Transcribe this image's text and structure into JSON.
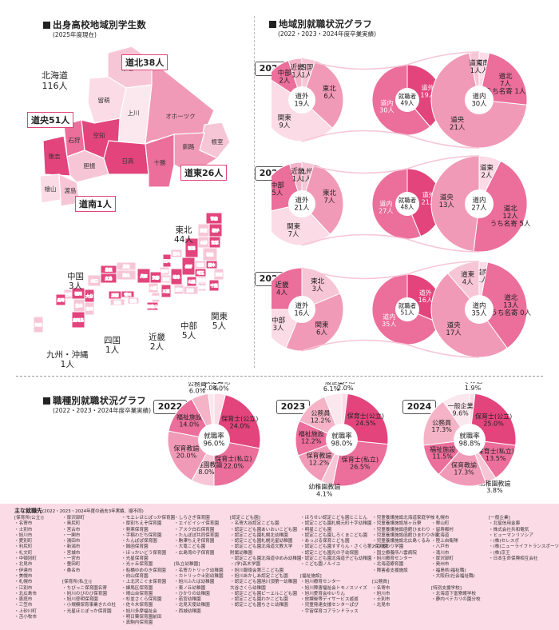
{
  "map_section": {
    "title": "出身高校地域別学生数",
    "subtitle": "(2025年度現在)",
    "hokkaido_subregions": [
      {
        "name": "道北",
        "count": "38人"
      },
      {
        "name": "道央",
        "count": "51人"
      },
      {
        "name": "道東",
        "count": "26人"
      },
      {
        "name": "道南",
        "count": "1人"
      }
    ],
    "hokkaido_label": "北海道",
    "hokkaido_total": "116人",
    "districts": [
      "宗谷",
      "留萌",
      "上川",
      "オホーツク",
      "根室",
      "石狩",
      "空知",
      "釧路",
      "後志",
      "胆振",
      "日高",
      "十勝",
      "檜山",
      "渡島"
    ],
    "prefectures": [
      "青森",
      "秋田",
      "岩手",
      "山形",
      "宮城",
      "福島",
      "新潟",
      "富山",
      "石川",
      "福井",
      "長野",
      "群馬",
      "栃木",
      "茨城",
      "埼玉",
      "東京",
      "千葉",
      "神奈川",
      "山梨",
      "静岡",
      "岐阜",
      "愛知",
      "三重",
      "滋賀",
      "京都",
      "大阪",
      "兵庫",
      "奈良",
      "和歌山",
      "鳥取",
      "島根",
      "岡山",
      "広島",
      "山口",
      "香川",
      "徳島",
      "愛媛",
      "高知",
      "福岡",
      "佐賀",
      "長崎",
      "熊本",
      "大分",
      "宮崎",
      "鹿児島",
      "沖縄"
    ],
    "regions": [
      {
        "name": "東北",
        "count": "44人"
      },
      {
        "name": "中国",
        "count": "3人"
      },
      {
        "name": "関東",
        "count": "5人"
      },
      {
        "name": "中部",
        "count": "5人"
      },
      {
        "name": "近畿",
        "count": "2人"
      },
      {
        "name": "四国",
        "count": "1人"
      },
      {
        "name": "九州・沖縄",
        "count": "1人"
      }
    ]
  },
  "region_section": {
    "title": "地域別就職状況グラフ",
    "subtitle": "(2022・2023・2024年度卒業実績)"
  },
  "job_section": {
    "title": "職種別就職状況グラフ",
    "subtitle": "(2022・2023・2024年度卒業実績)"
  },
  "chart_data": [
    {
      "type": "pie",
      "year": "2022",
      "title": "地域別就職状況 2022",
      "outer_left": {
        "slices": [
          {
            "label": "四国",
            "value": "1人"
          },
          {
            "label": "東北",
            "value": "6人"
          },
          {
            "label": "関東",
            "value": "9人"
          },
          {
            "label": "中部",
            "value": "2人"
          },
          {
            "label": "近畿",
            "value": "1人"
          }
        ],
        "center": {
          "label": "道外",
          "value": "19人"
        }
      },
      "middle": {
        "slices": [
          {
            "label": "道外",
            "value": "19人"
          },
          {
            "label": "道内",
            "value": "30人"
          }
        ],
        "center": {
          "label": "就職者",
          "value": "49人"
        }
      },
      "outer_right": {
        "slices": [
          {
            "label": "道南",
            "value": "1人"
          },
          {
            "label": "道北",
            "value": "7人",
            "note": "うち名寄",
            "note_value": "1人"
          },
          {
            "label": "道央",
            "value": "21人"
          },
          {
            "label": "道東",
            "value": "1人"
          }
        ],
        "center": {
          "label": "道内",
          "value": "30人"
        }
      }
    },
    {
      "type": "pie",
      "year": "2023",
      "title": "地域別就職状況 2023",
      "outer_left": {
        "slices": [
          {
            "label": "九州",
            "value": "1人"
          },
          {
            "label": "東北",
            "value": "7人"
          },
          {
            "label": "関東",
            "value": "7人"
          },
          {
            "label": "中部",
            "value": "5人"
          },
          {
            "label": "近畿",
            "value": "1人"
          }
        ],
        "center": {
          "label": "道外",
          "value": "21人"
        }
      },
      "middle": {
        "slices": [
          {
            "label": "道外",
            "value": "21人"
          },
          {
            "label": "道内",
            "value": "27人"
          }
        ],
        "center": {
          "label": "就職者",
          "value": "48人"
        }
      },
      "outer_right": {
        "slices": [
          {
            "label": "道東",
            "value": "2人"
          },
          {
            "label": "道北",
            "value": "12人",
            "note": "うち名寄",
            "note_value": "5人"
          },
          {
            "label": "道央",
            "value": "13人"
          }
        ],
        "center": {
          "label": "道内",
          "value": "27人"
        }
      }
    },
    {
      "type": "pie",
      "year": "2024",
      "title": "地域別就職状況 2024",
      "outer_left": {
        "slices": [
          {
            "label": "東北",
            "value": "3人"
          },
          {
            "label": "関東",
            "value": "6人"
          },
          {
            "label": "中部",
            "value": "3人"
          },
          {
            "label": "近畿",
            "value": "4人"
          }
        ],
        "center": {
          "label": "道外",
          "value": "16人"
        }
      },
      "middle": {
        "slices": [
          {
            "label": "道外",
            "value": "16人"
          },
          {
            "label": "道内",
            "value": "35人"
          }
        ],
        "center": {
          "label": "就職者",
          "value": "51人"
        }
      },
      "outer_right": {
        "slices": [
          {
            "label": "道南",
            "value": "1人"
          },
          {
            "label": "道北",
            "value": "13人",
            "note": "うち名寄",
            "note_value": "0人"
          },
          {
            "label": "道央",
            "value": "17人"
          },
          {
            "label": "道東",
            "value": "4人"
          }
        ],
        "center": {
          "label": "道内",
          "value": "35人"
        }
      }
    },
    {
      "type": "pie",
      "year": "2022",
      "title": "職種別就職状況 2022",
      "center": {
        "label": "就職率",
        "value": "96.0%"
      },
      "slices": [
        {
          "label": "その他",
          "value": 4.0
        },
        {
          "label": "保育士(公立)",
          "value": 24.0
        },
        {
          "label": "保育士(私立)",
          "value": 22.0
        },
        {
          "label": "幼稚園教諭",
          "value": 8.0
        },
        {
          "label": "保育教諭",
          "value": 20.0
        },
        {
          "label": "福祉施設",
          "value": 14.0
        },
        {
          "label": "公務員",
          "value": 6.0
        },
        {
          "label": "一般企業",
          "value": 2.0
        }
      ]
    },
    {
      "type": "pie",
      "year": "2023",
      "title": "職種別就職状況 2023",
      "center": {
        "label": "就職率",
        "value": "98.0%"
      },
      "slices": [
        {
          "label": "その他",
          "value": 2.0
        },
        {
          "label": "保育士(公立)",
          "value": 24.5
        },
        {
          "label": "保育士(私立)",
          "value": 26.5
        },
        {
          "label": "幼稚園教諭",
          "value": 4.1
        },
        {
          "label": "保育教諭",
          "value": 12.2
        },
        {
          "label": "福祉施設",
          "value": 12.2
        },
        {
          "label": "公務員",
          "value": 12.2
        },
        {
          "label": "一般企業",
          "value": 6.1
        }
      ]
    },
    {
      "type": "pie",
      "year": "2024",
      "title": "職種別就職状況 2024",
      "center": {
        "label": "就職率",
        "value": "98.8%"
      },
      "slices": [
        {
          "label": "その他",
          "value": 1.9
        },
        {
          "label": "保育士(公立)",
          "value": 25.0
        },
        {
          "label": "保育士(私立)",
          "value": 13.5
        },
        {
          "label": "幼稚園教諭",
          "value": 3.8
        },
        {
          "label": "保育教諭",
          "value": 17.3
        },
        {
          "label": "福祉施設",
          "value": 11.5
        },
        {
          "label": "公務員",
          "value": 17.3
        },
        {
          "label": "一般企業",
          "value": 9.6
        }
      ]
    }
  ],
  "footer": {
    "title": "主な就職先",
    "title_note": "(2022・2023・2024年度の過去3年実績、順不同)",
    "columns": [
      [
        "[保育所(公立)]",
        "・名寄市",
        "・士別市",
        "・旭川市",
        "・愛別町",
        "・利尻町",
        "・礼文町",
        "・中頓別町",
        "・北見市",
        "・伊達市",
        "・美幌市",
        "・札幌市",
        "・江別市",
        "・北広島市",
        "・恵庭市",
        "・三笠市",
        "・上砂川町",
        "・苫小牧市"
      ],
      [
        "・厚沢部町",
        "・奥尻町",
        "・宮古市",
        "・一関市",
        "・湯田市",
        "・新潟市",
        "・宮城市",
        "・一宮市",
        "・豊田町",
        "・桑名市",
        "",
        "[保育所(私立)]",
        "・ちびっこ保育園名寄",
        "・旭川のびのび保育園",
        "・旭川啓明保育園",
        "・小規模保育事業きたの杜",
        "・光星ほとぽっか保育園"
      ],
      [
        "・モエレほとぽっか保育園",
        "・厚別ちえぞ保育園",
        "・発寒保育園",
        "・手稲わだち保育園",
        "・たんぽぽ保育園",
        "・銭函保育園",
        "・ほっかいどう保育園",
        "・光星保育園",
        "・光ヶ丘保育園",
        "・船橋ゆめのき保育園",
        "・向山保育園",
        "・上北沢こぐま保育園",
        "・練馬区保育園",
        "・晴山台保育園",
        "・杉並さくら保育園",
        "・佐々木保育園",
        "・旭川多摩福祉会",
        "・明日葉保育園前田",
        "・真駒内保育園"
      ],
      [
        "・しらさぎ保育園",
        "・エイビイシイ保育園",
        "・アスク白石保育園",
        "・たんぽぽ共同保育園",
        "・駒澤ちえぞ保育園",
        "・大竜こども園",
        "・広島湾の子保育園",
        "",
        "[私立幼稚園]",
        "・名寄カトリック幼稚園",
        "・カトリック士別幼稚園",
        "・旭川ふたば幼稚園",
        "・東ノ丘幼稚園",
        "・ひかりの幼稚園",
        "・若宮幼稚園",
        "・北見天使幼稚園",
        "・西城幼稚園"
      ],
      [
        "[認定こども園]",
        "・名寄大谷認定こども園",
        "・認定こども園あいおいこども園",
        "・認定こども園札幌北幼稚園",
        "・認定こども園札幌光星幼稚園",
        "・認定こども園北海道文教大学",
        "  附属幼稚園",
        "・認定こども園北海道ゆめみ幼稚園",
        "・(学)高木学園",
        "・旭川報徳会第三こども園",
        "・旭川あかしあ認定こども園",
        "・認定こども園旭川頂第一幼稚園",
        "  大谷さくら幼稚園",
        "・認定こども園ビーエルこども園",
        "・認定こども園わかこども園",
        "・認定こども園ちさと幼稚園"
      ],
      [
        "・ほろせい認定こども園とことん",
        "・認定こども園札幌元町十字幼稚園",
        "・明星こども園",
        "・認定こども園しろくまこども園",
        "・あっぷる保育こども園",
        "・認定こども園すずらん・さくら第2保育園",
        "・認定こども園光の子幼保園",
        "・認定こども園北海道子ども幼稚園",
        "・こども園ノルイユ",
        "",
        "[福祉施設]",
        "・旭川療育センター",
        "・旭川障害福祉会トモノスソイズ",
        "・旭川愛育会ゆいりん",
        "・放課後等デイサービス遊遊",
        "・児童発達支援センターぱぴ",
        "・宇宙保育コアランドラッス"
      ],
      [
        "・児童養護施設北海道家庭学校",
        "・児童養護施設旭ヶ丘寮",
        "・児童養護施設函館ひまわり",
        "・児童養護施設函館ひまわりの家",
        "・児童養護施設北広島くるみ",
        "・ひまわり学園",
        "・国立療養所八雲病院",
        "・旭川療育センター",
        "・北海道療育園",
        "・障害者支援施設",
        "",
        " [公務員]",
        "・名寄市",
        "・旭川市",
        "・士別市",
        "・北見市"
      ],
      [
        "・札幌市",
        "・栗山町",
        "・留寿都村",
        "・北海道",
        "・陸上自衛隊",
        "・八戸市",
        "・滝川市",
        "・厚沢部町",
        "・奥州市",
        "・福島県(福祉職)",
        "・大阪府(社会福祉職)",
        "",
        "[特別支援学校]",
        "・北海道下富寮護学校",
        "・静内ペテカリの園分校"
      ],
      [
        "[一般企業]",
        "・北星信用金庫",
        "・株式会社共和電気",
        "・ヒューマンリソシア",
        "・(株)セレスポ",
        "・(株)ニューライフトランスポーツ",
        "・(株)京王",
        "・日本生命保険相互会社"
      ]
    ]
  }
}
